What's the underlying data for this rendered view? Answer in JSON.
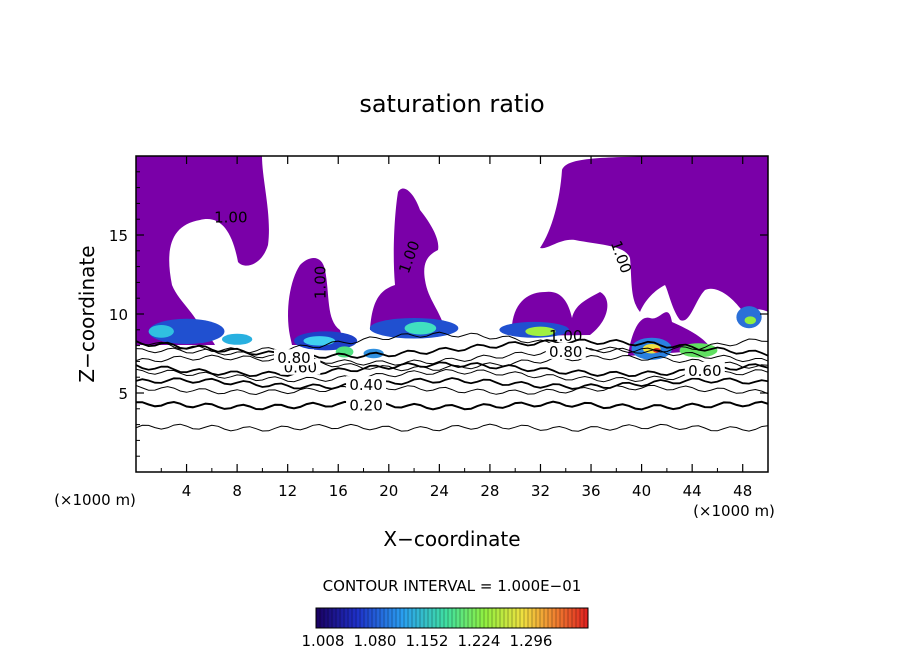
{
  "chart_data": {
    "type": "heatmap",
    "title": "saturation ratio",
    "xlabel": "X−coordinate",
    "ylabel": "Z−coordinate",
    "x_unit_left": "(×1000 m)",
    "x_unit_right": "(×1000 m)",
    "xlim": [
      0,
      50
    ],
    "ylim": [
      0,
      20
    ],
    "x_ticks": [
      4,
      8,
      12,
      16,
      20,
      24,
      28,
      32,
      36,
      40,
      44,
      48
    ],
    "y_ticks": [
      5,
      10,
      15
    ],
    "contour_interval_text": "CONTOUR INTERVAL = 1.000E−01",
    "contour_lines": [
      {
        "label": "0.20",
        "z": 4.2,
        "label_x": 18.2
      },
      {
        "label": "0.40",
        "z": 5.5,
        "label_x": 18.2
      },
      {
        "label": "0.60",
        "z": 6.6,
        "label_x": 13.0
      },
      {
        "label": "0.80",
        "z": 7.6,
        "label_x": 34.0
      },
      {
        "label": "0.60",
        "z": 6.4,
        "label_x": 45.0
      },
      {
        "label": "0.80",
        "z": 7.2,
        "label_x": 12.5
      }
    ],
    "saturated_label": "1.00",
    "colorbar": {
      "ticks": [
        "1.008",
        "1.080",
        "1.152",
        "1.224",
        "1.296"
      ],
      "colors": [
        "#1a0060",
        "#1e30c8",
        "#2aa0f0",
        "#40e0a0",
        "#90f040",
        "#f0e040",
        "#f08030",
        "#e02020"
      ]
    },
    "colors": {
      "saturated": "#7a00a8",
      "contour": "#000000"
    }
  }
}
